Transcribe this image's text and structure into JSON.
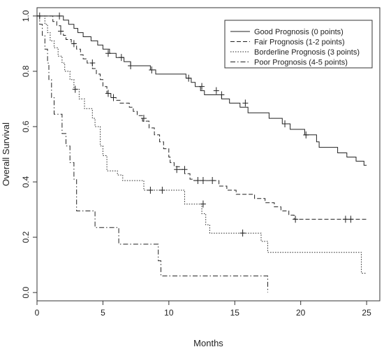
{
  "chart_data": {
    "type": "line",
    "title": "",
    "xlabel": "Months",
    "ylabel": "Overall Survival",
    "xlim": [
      0,
      26
    ],
    "ylim": [
      -0.03,
      1.03
    ],
    "xticks": [
      0,
      5,
      10,
      15,
      20,
      25
    ],
    "yticks": [
      0.0,
      0.2,
      0.4,
      0.6,
      0.8,
      1.0
    ],
    "xtick_labels": [
      "0",
      "5",
      "10",
      "15",
      "20",
      "25"
    ],
    "ytick_labels": [
      "0.0",
      "0.2",
      "0.4",
      "0.6",
      "0.8",
      "1.0"
    ],
    "grid": false,
    "legend_position": "top-right",
    "series": [
      {
        "name": "Good Prognosis (0 points)",
        "dash": "solid",
        "steps": [
          [
            0,
            1.0
          ],
          [
            2.0,
            0.985
          ],
          [
            2.4,
            0.97
          ],
          [
            2.8,
            0.955
          ],
          [
            3.1,
            0.94
          ],
          [
            3.5,
            0.925
          ],
          [
            4.1,
            0.91
          ],
          [
            4.6,
            0.895
          ],
          [
            5.0,
            0.88
          ],
          [
            5.5,
            0.865
          ],
          [
            6.0,
            0.85
          ],
          [
            6.6,
            0.835
          ],
          [
            7.1,
            0.82
          ],
          [
            8.6,
            0.805
          ],
          [
            9.0,
            0.79
          ],
          [
            11.3,
            0.775
          ],
          [
            11.7,
            0.76
          ],
          [
            12.0,
            0.745
          ],
          [
            12.4,
            0.73
          ],
          [
            12.7,
            0.715
          ],
          [
            14.0,
            0.7
          ],
          [
            14.6,
            0.685
          ],
          [
            15.4,
            0.67
          ],
          [
            16.0,
            0.65
          ],
          [
            17.6,
            0.63
          ],
          [
            18.6,
            0.61
          ],
          [
            19.2,
            0.59
          ],
          [
            20.3,
            0.57
          ],
          [
            21.2,
            0.545
          ],
          [
            21.4,
            0.525
          ],
          [
            22.8,
            0.505
          ],
          [
            23.5,
            0.49
          ],
          [
            24.2,
            0.475
          ],
          [
            24.8,
            0.46
          ],
          [
            25.0,
            0.46
          ]
        ],
        "censored": [
          [
            0.2,
            1.0
          ],
          [
            1.7,
            1.0
          ],
          [
            5.4,
            0.865
          ],
          [
            6.4,
            0.85
          ],
          [
            7.1,
            0.82
          ],
          [
            8.7,
            0.805
          ],
          [
            11.5,
            0.775
          ],
          [
            12.5,
            0.745
          ],
          [
            13.6,
            0.73
          ],
          [
            14.0,
            0.715
          ],
          [
            15.8,
            0.685
          ],
          [
            18.8,
            0.61
          ],
          [
            20.4,
            0.57
          ]
        ]
      },
      {
        "name": "Fair Prognosis (1-2 points)",
        "dash": "dashed",
        "steps": [
          [
            0,
            1.0
          ],
          [
            1.2,
            0.98
          ],
          [
            1.5,
            0.965
          ],
          [
            1.8,
            0.945
          ],
          [
            2.0,
            0.93
          ],
          [
            2.2,
            0.915
          ],
          [
            2.6,
            0.9
          ],
          [
            3.0,
            0.88
          ],
          [
            3.3,
            0.86
          ],
          [
            3.5,
            0.845
          ],
          [
            3.8,
            0.83
          ],
          [
            4.2,
            0.81
          ],
          [
            4.5,
            0.79
          ],
          [
            4.8,
            0.77
          ],
          [
            5.0,
            0.745
          ],
          [
            5.3,
            0.72
          ],
          [
            5.6,
            0.705
          ],
          [
            6.0,
            0.695
          ],
          [
            6.3,
            0.685
          ],
          [
            7.0,
            0.67
          ],
          [
            7.3,
            0.655
          ],
          [
            7.6,
            0.64
          ],
          [
            8.0,
            0.62
          ],
          [
            8.5,
            0.595
          ],
          [
            8.9,
            0.57
          ],
          [
            9.3,
            0.545
          ],
          [
            9.6,
            0.52
          ],
          [
            10.0,
            0.49
          ],
          [
            10.1,
            0.47
          ],
          [
            10.4,
            0.455
          ],
          [
            10.8,
            0.445
          ],
          [
            11.2,
            0.43
          ],
          [
            11.6,
            0.41
          ],
          [
            11.9,
            0.405
          ],
          [
            13.8,
            0.385
          ],
          [
            14.4,
            0.37
          ],
          [
            15.1,
            0.355
          ],
          [
            16.5,
            0.34
          ],
          [
            17.3,
            0.325
          ],
          [
            18.0,
            0.31
          ],
          [
            18.5,
            0.295
          ],
          [
            19.1,
            0.28
          ],
          [
            19.5,
            0.265
          ],
          [
            25.0,
            0.265
          ]
        ],
        "censored": [
          [
            1.8,
            0.945
          ],
          [
            2.8,
            0.9
          ],
          [
            4.2,
            0.83
          ],
          [
            5.4,
            0.72
          ],
          [
            5.8,
            0.705
          ],
          [
            8.1,
            0.63
          ],
          [
            10.6,
            0.445
          ],
          [
            11.2,
            0.445
          ],
          [
            12.2,
            0.405
          ],
          [
            12.6,
            0.405
          ],
          [
            13.3,
            0.405
          ],
          [
            19.6,
            0.265
          ],
          [
            23.4,
            0.265
          ],
          [
            23.8,
            0.265
          ]
        ]
      },
      {
        "name": "Borderline Prognosis (3 points)",
        "dash": "dotted",
        "steps": [
          [
            0,
            1.0
          ],
          [
            0.6,
            0.97
          ],
          [
            0.8,
            0.94
          ],
          [
            1.0,
            0.91
          ],
          [
            1.3,
            0.885
          ],
          [
            1.6,
            0.855
          ],
          [
            1.9,
            0.83
          ],
          [
            2.1,
            0.8
          ],
          [
            2.5,
            0.77
          ],
          [
            2.8,
            0.735
          ],
          [
            3.2,
            0.7
          ],
          [
            3.6,
            0.665
          ],
          [
            4.2,
            0.63
          ],
          [
            4.4,
            0.6
          ],
          [
            4.8,
            0.53
          ],
          [
            5.0,
            0.495
          ],
          [
            5.3,
            0.44
          ],
          [
            6.1,
            0.425
          ],
          [
            6.5,
            0.405
          ],
          [
            8.1,
            0.37
          ],
          [
            11.2,
            0.32
          ],
          [
            12.5,
            0.285
          ],
          [
            12.8,
            0.245
          ],
          [
            13.1,
            0.215
          ],
          [
            17.0,
            0.185
          ],
          [
            17.5,
            0.145
          ],
          [
            24.6,
            0.07
          ],
          [
            25.0,
            0.07
          ]
        ],
        "censored": [
          [
            2.9,
            0.735
          ],
          [
            8.6,
            0.37
          ],
          [
            9.5,
            0.37
          ],
          [
            12.6,
            0.32
          ],
          [
            15.6,
            0.215
          ]
        ]
      },
      {
        "name": "Poor Prognosis (4-5 points)",
        "dash": "dotdash",
        "steps": [
          [
            0,
            1.0
          ],
          [
            0.2,
            0.97
          ],
          [
            0.4,
            0.93
          ],
          [
            0.6,
            0.88
          ],
          [
            0.8,
            0.83
          ],
          [
            0.9,
            0.77
          ],
          [
            1.1,
            0.705
          ],
          [
            1.3,
            0.645
          ],
          [
            1.9,
            0.575
          ],
          [
            2.2,
            0.53
          ],
          [
            2.5,
            0.47
          ],
          [
            2.8,
            0.41
          ],
          [
            3.0,
            0.295
          ],
          [
            4.4,
            0.235
          ],
          [
            6.2,
            0.175
          ],
          [
            9.2,
            0.115
          ],
          [
            9.4,
            0.06
          ],
          [
            17.5,
            0.0
          ]
        ],
        "censored": []
      }
    ]
  }
}
